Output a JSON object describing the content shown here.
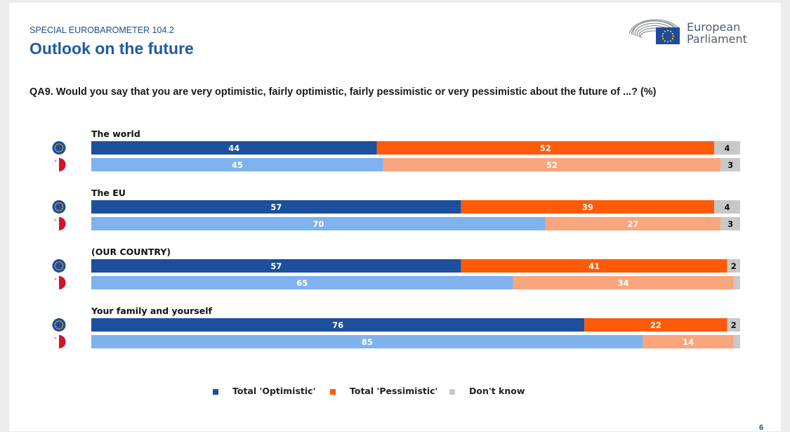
{
  "header": {
    "subtitle": "SPECIAL EUROBAROMETER 104.2",
    "title": "Outlook on the future",
    "logo_line1": "European",
    "logo_line2": "Parliament"
  },
  "question": "QA9. Would you say that you are very optimistic, fairly optimistic, fairly pessimistic or very pessimistic about the future of ...? (%)",
  "colors": {
    "eu_optimistic": "#1c4f9c",
    "eu_pessimistic": "#ff5a0a",
    "country_optimistic": "#7fb2ee",
    "country_pessimistic": "#f9a57d",
    "dont_know": "#c8c8c8",
    "eu_flag": "#1f4aa0",
    "malta_red": "#cf142b"
  },
  "legend": [
    {
      "label": "Total 'Optimistic'",
      "color": "#1c4f9c"
    },
    {
      "label": "Total 'Pessimistic'",
      "color": "#ff5a0a"
    },
    {
      "label": "Don't know",
      "color": "#c8c8c8"
    }
  ],
  "page_number": "6",
  "chart_data": {
    "type": "bar",
    "orientation": "horizontal-stacked",
    "series_names": [
      "Total 'Optimistic'",
      "Total 'Pessimistic'",
      "Don't know"
    ],
    "groups": [
      {
        "label": "The world",
        "rows": [
          {
            "icon": "eu-flag-icon",
            "values": [
              44,
              52,
              4
            ],
            "labels": [
              "44",
              "52",
              "4"
            ]
          },
          {
            "icon": "malta-flag-icon",
            "values": [
              45,
              52,
              3
            ],
            "labels": [
              "45",
              "52",
              "3"
            ]
          }
        ]
      },
      {
        "label": "The EU",
        "rows": [
          {
            "icon": "eu-flag-icon",
            "values": [
              57,
              39,
              4
            ],
            "labels": [
              "57",
              "39",
              "4"
            ]
          },
          {
            "icon": "malta-flag-icon",
            "values": [
              70,
              27,
              3
            ],
            "labels": [
              "70",
              "27",
              "3"
            ]
          }
        ]
      },
      {
        "label": "(OUR COUNTRY)",
        "rows": [
          {
            "icon": "eu-flag-icon",
            "values": [
              57,
              41,
              2
            ],
            "labels": [
              "57",
              "41",
              "2"
            ]
          },
          {
            "icon": "malta-flag-icon",
            "values": [
              65,
              34,
              1
            ],
            "labels": [
              "65",
              "34",
              ""
            ]
          }
        ]
      },
      {
        "label": "Your family and yourself",
        "rows": [
          {
            "icon": "eu-flag-icon",
            "values": [
              76,
              22,
              2
            ],
            "labels": [
              "76",
              "22",
              "2"
            ]
          },
          {
            "icon": "malta-flag-icon",
            "values": [
              85,
              14,
              1
            ],
            "labels": [
              "85",
              "14",
              ""
            ]
          }
        ]
      }
    ]
  }
}
